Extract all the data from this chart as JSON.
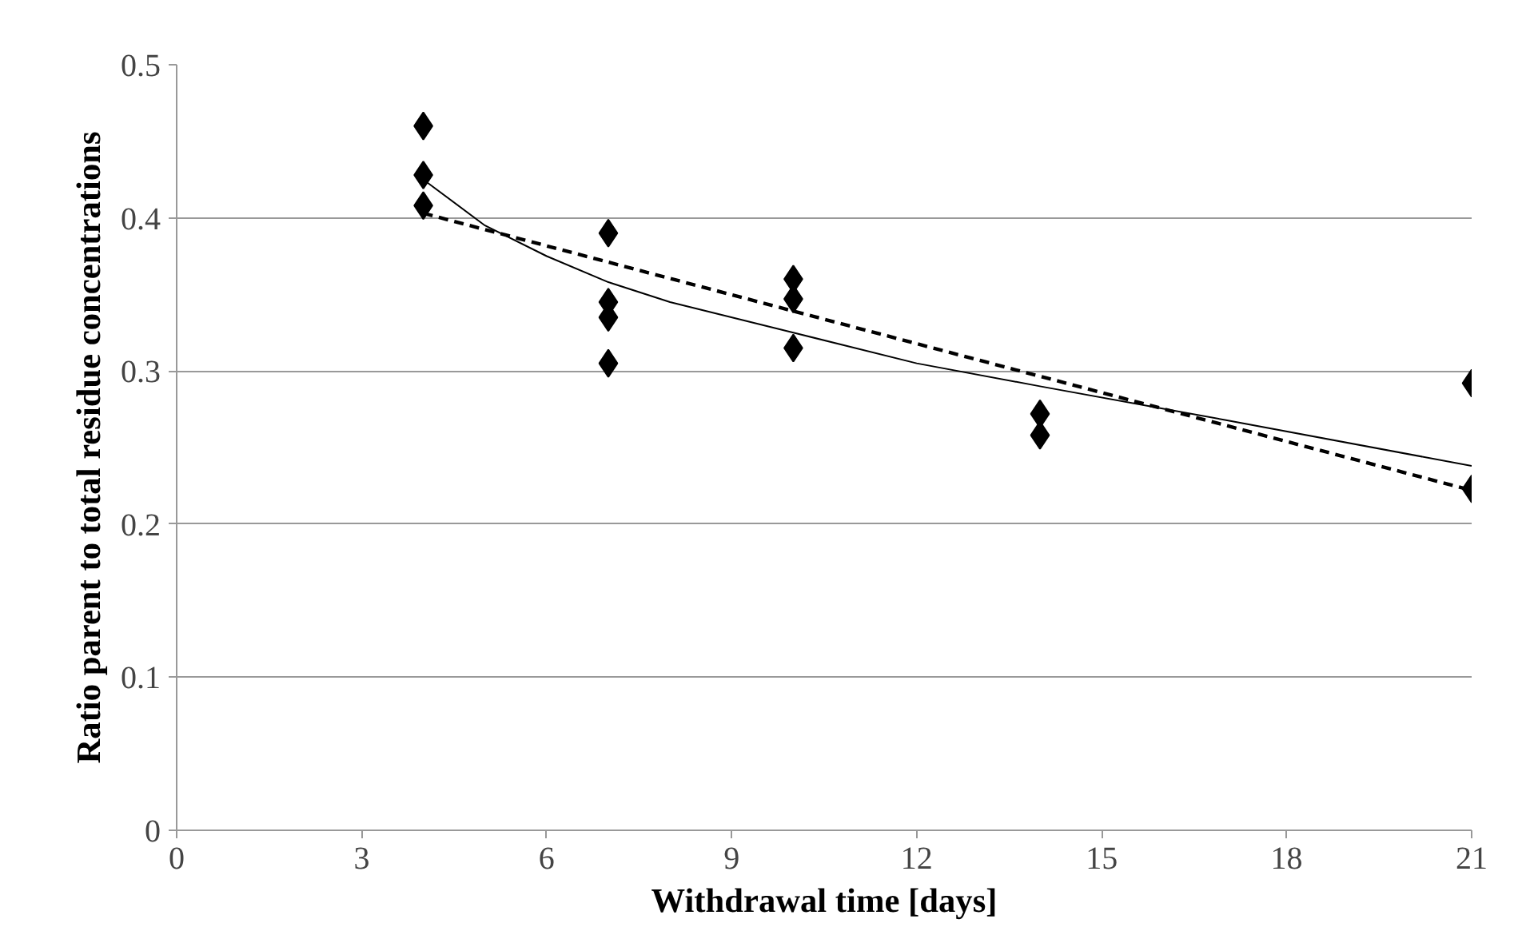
{
  "chart_data": {
    "type": "scatter",
    "xlabel": "Withdrawal time [days]",
    "ylabel": "Ratio parent to total residue concentrations",
    "xlim": [
      0,
      21
    ],
    "xticks": [
      0,
      3,
      6,
      9,
      12,
      15,
      18,
      21
    ],
    "ylim": [
      0,
      0.5
    ],
    "yticks": [
      0,
      0.1,
      0.2,
      0.3,
      0.4,
      0.5
    ],
    "grid": "y",
    "series": [
      {
        "color": "#000000",
        "marker": "diamond",
        "x": [
          4,
          4,
          4,
          7,
          7,
          7,
          7,
          10,
          10,
          10,
          14,
          14,
          21,
          21
        ],
        "values": [
          0.46,
          0.428,
          0.408,
          0.39,
          0.345,
          0.335,
          0.305,
          0.36,
          0.347,
          0.315,
          0.272,
          0.258,
          0.292,
          0.223
        ]
      },
      {
        "type": "line",
        "color": "#000000",
        "line_style": "solid",
        "x": [
          4,
          5,
          6,
          7,
          8,
          10,
          12,
          14,
          17,
          21
        ],
        "values": [
          0.425,
          0.395,
          0.375,
          0.358,
          0.345,
          0.325,
          0.305,
          0.29,
          0.268,
          0.238
        ]
      },
      {
        "type": "line",
        "color": "#000000",
        "line_style": "dashed",
        "x": [
          4,
          21
        ],
        "values": [
          0.403,
          0.222
        ]
      }
    ]
  }
}
